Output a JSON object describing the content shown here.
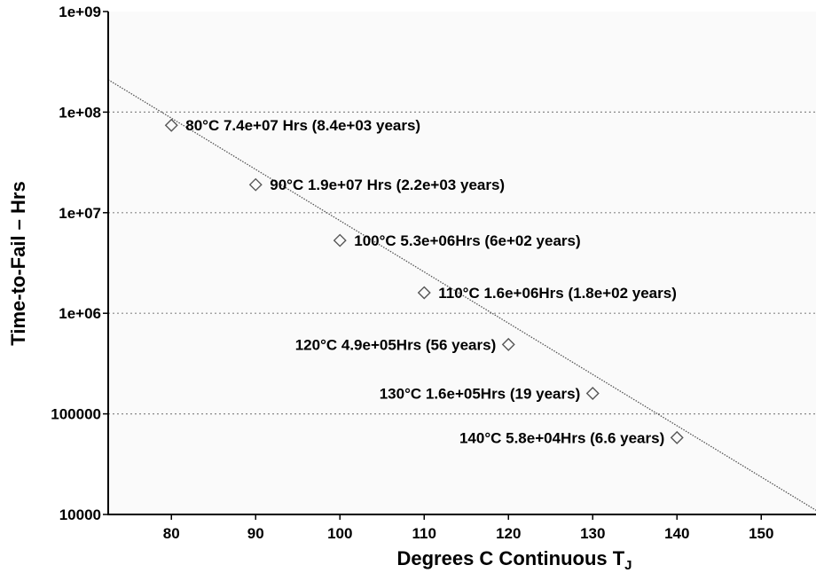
{
  "chart_data": {
    "type": "scatter",
    "xlabel": "Degrees C Continuous T",
    "xlabel_subscript": "J",
    "ylabel": "Time-to-Fail – Hrs",
    "xlim": [
      72.5,
      156.5
    ],
    "ylim": [
      10000,
      1000000000
    ],
    "y_scale": "log",
    "x_ticks": [
      80,
      90,
      100,
      110,
      120,
      130,
      140,
      150
    ],
    "y_ticks": [
      {
        "value": 10000,
        "label": "10000"
      },
      {
        "value": 100000,
        "label": "100000"
      },
      {
        "value": 1000000,
        "label": "1e+06"
      },
      {
        "value": 10000000,
        "label": "1e+07"
      },
      {
        "value": 100000000,
        "label": "1e+08"
      },
      {
        "value": 1000000000,
        "label": "1e+09"
      }
    ],
    "grid": "horizontal-dotted",
    "points": [
      {
        "x": 80,
        "y": 74000000,
        "label": "80°C 7.4e+07 Hrs (8.4e+03 years)",
        "label_side": "right"
      },
      {
        "x": 90,
        "y": 19000000,
        "label": "90°C 1.9e+07 Hrs (2.2e+03 years)",
        "label_side": "right"
      },
      {
        "x": 100,
        "y": 5300000,
        "label": "100°C 5.3e+06Hrs (6e+02 years)",
        "label_side": "right"
      },
      {
        "x": 110,
        "y": 1600000,
        "label": "110°C 1.6e+06Hrs (1.8e+02 years)",
        "label_side": "right"
      },
      {
        "x": 120,
        "y": 490000,
        "label": "120°C 4.9e+05Hrs (56 years)",
        "label_side": "left"
      },
      {
        "x": 130,
        "y": 160000,
        "label": "130°C 1.6e+05Hrs (19 years)",
        "label_side": "left"
      },
      {
        "x": 140,
        "y": 58000,
        "label": "140°C 5.8e+04Hrs (6.6 years)",
        "label_side": "left"
      }
    ],
    "fit_line": {
      "x": [
        72.5,
        156.5
      ],
      "y": [
        210000000,
        11000
      ]
    }
  }
}
